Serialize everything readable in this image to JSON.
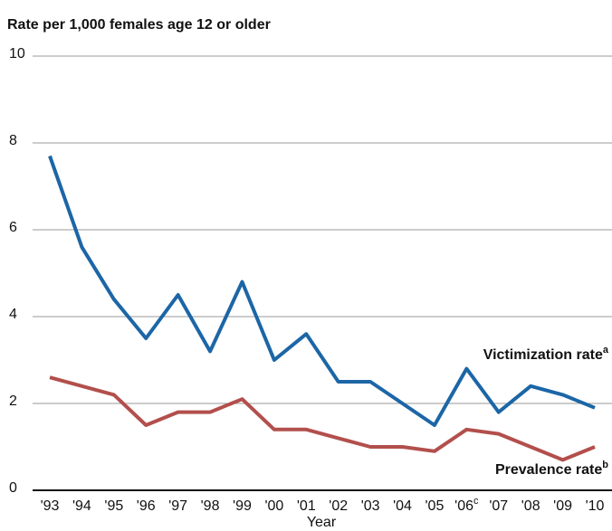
{
  "chart_data": {
    "type": "line",
    "title": "Rate per 1,000 females age 12 or older",
    "x_label": "Year",
    "categories": [
      "'93",
      "'94",
      "'95",
      "'96",
      "'97",
      "'98",
      "'99",
      "'00",
      "'01",
      "'02",
      "'03",
      "'04",
      "'05",
      "'06",
      "'07",
      "'08",
      "'09",
      "'10"
    ],
    "category_superscripts": [
      null,
      null,
      null,
      null,
      null,
      null,
      null,
      null,
      null,
      null,
      null,
      null,
      null,
      "c",
      null,
      null,
      null,
      null
    ],
    "series": [
      {
        "name": "Victimization rate",
        "superscript": "a",
        "color": "#1c66a6",
        "values": [
          7.7,
          5.6,
          4.4,
          3.5,
          4.5,
          3.2,
          4.8,
          3.0,
          3.6,
          2.5,
          2.5,
          2.0,
          1.5,
          2.8,
          1.8,
          2.4,
          2.2,
          1.9
        ]
      },
      {
        "name": "Prevalence rate",
        "superscript": "b",
        "color": "#b24f4c",
        "values": [
          2.6,
          2.4,
          2.2,
          1.5,
          1.8,
          1.8,
          2.1,
          1.4,
          1.4,
          1.2,
          1.0,
          1.0,
          0.9,
          1.4,
          1.3,
          1.0,
          0.7,
          1.0
        ]
      }
    ],
    "ylim": [
      0,
      10
    ],
    "yticks": [
      0,
      2,
      4,
      6,
      8,
      10
    ],
    "grid": true
  }
}
